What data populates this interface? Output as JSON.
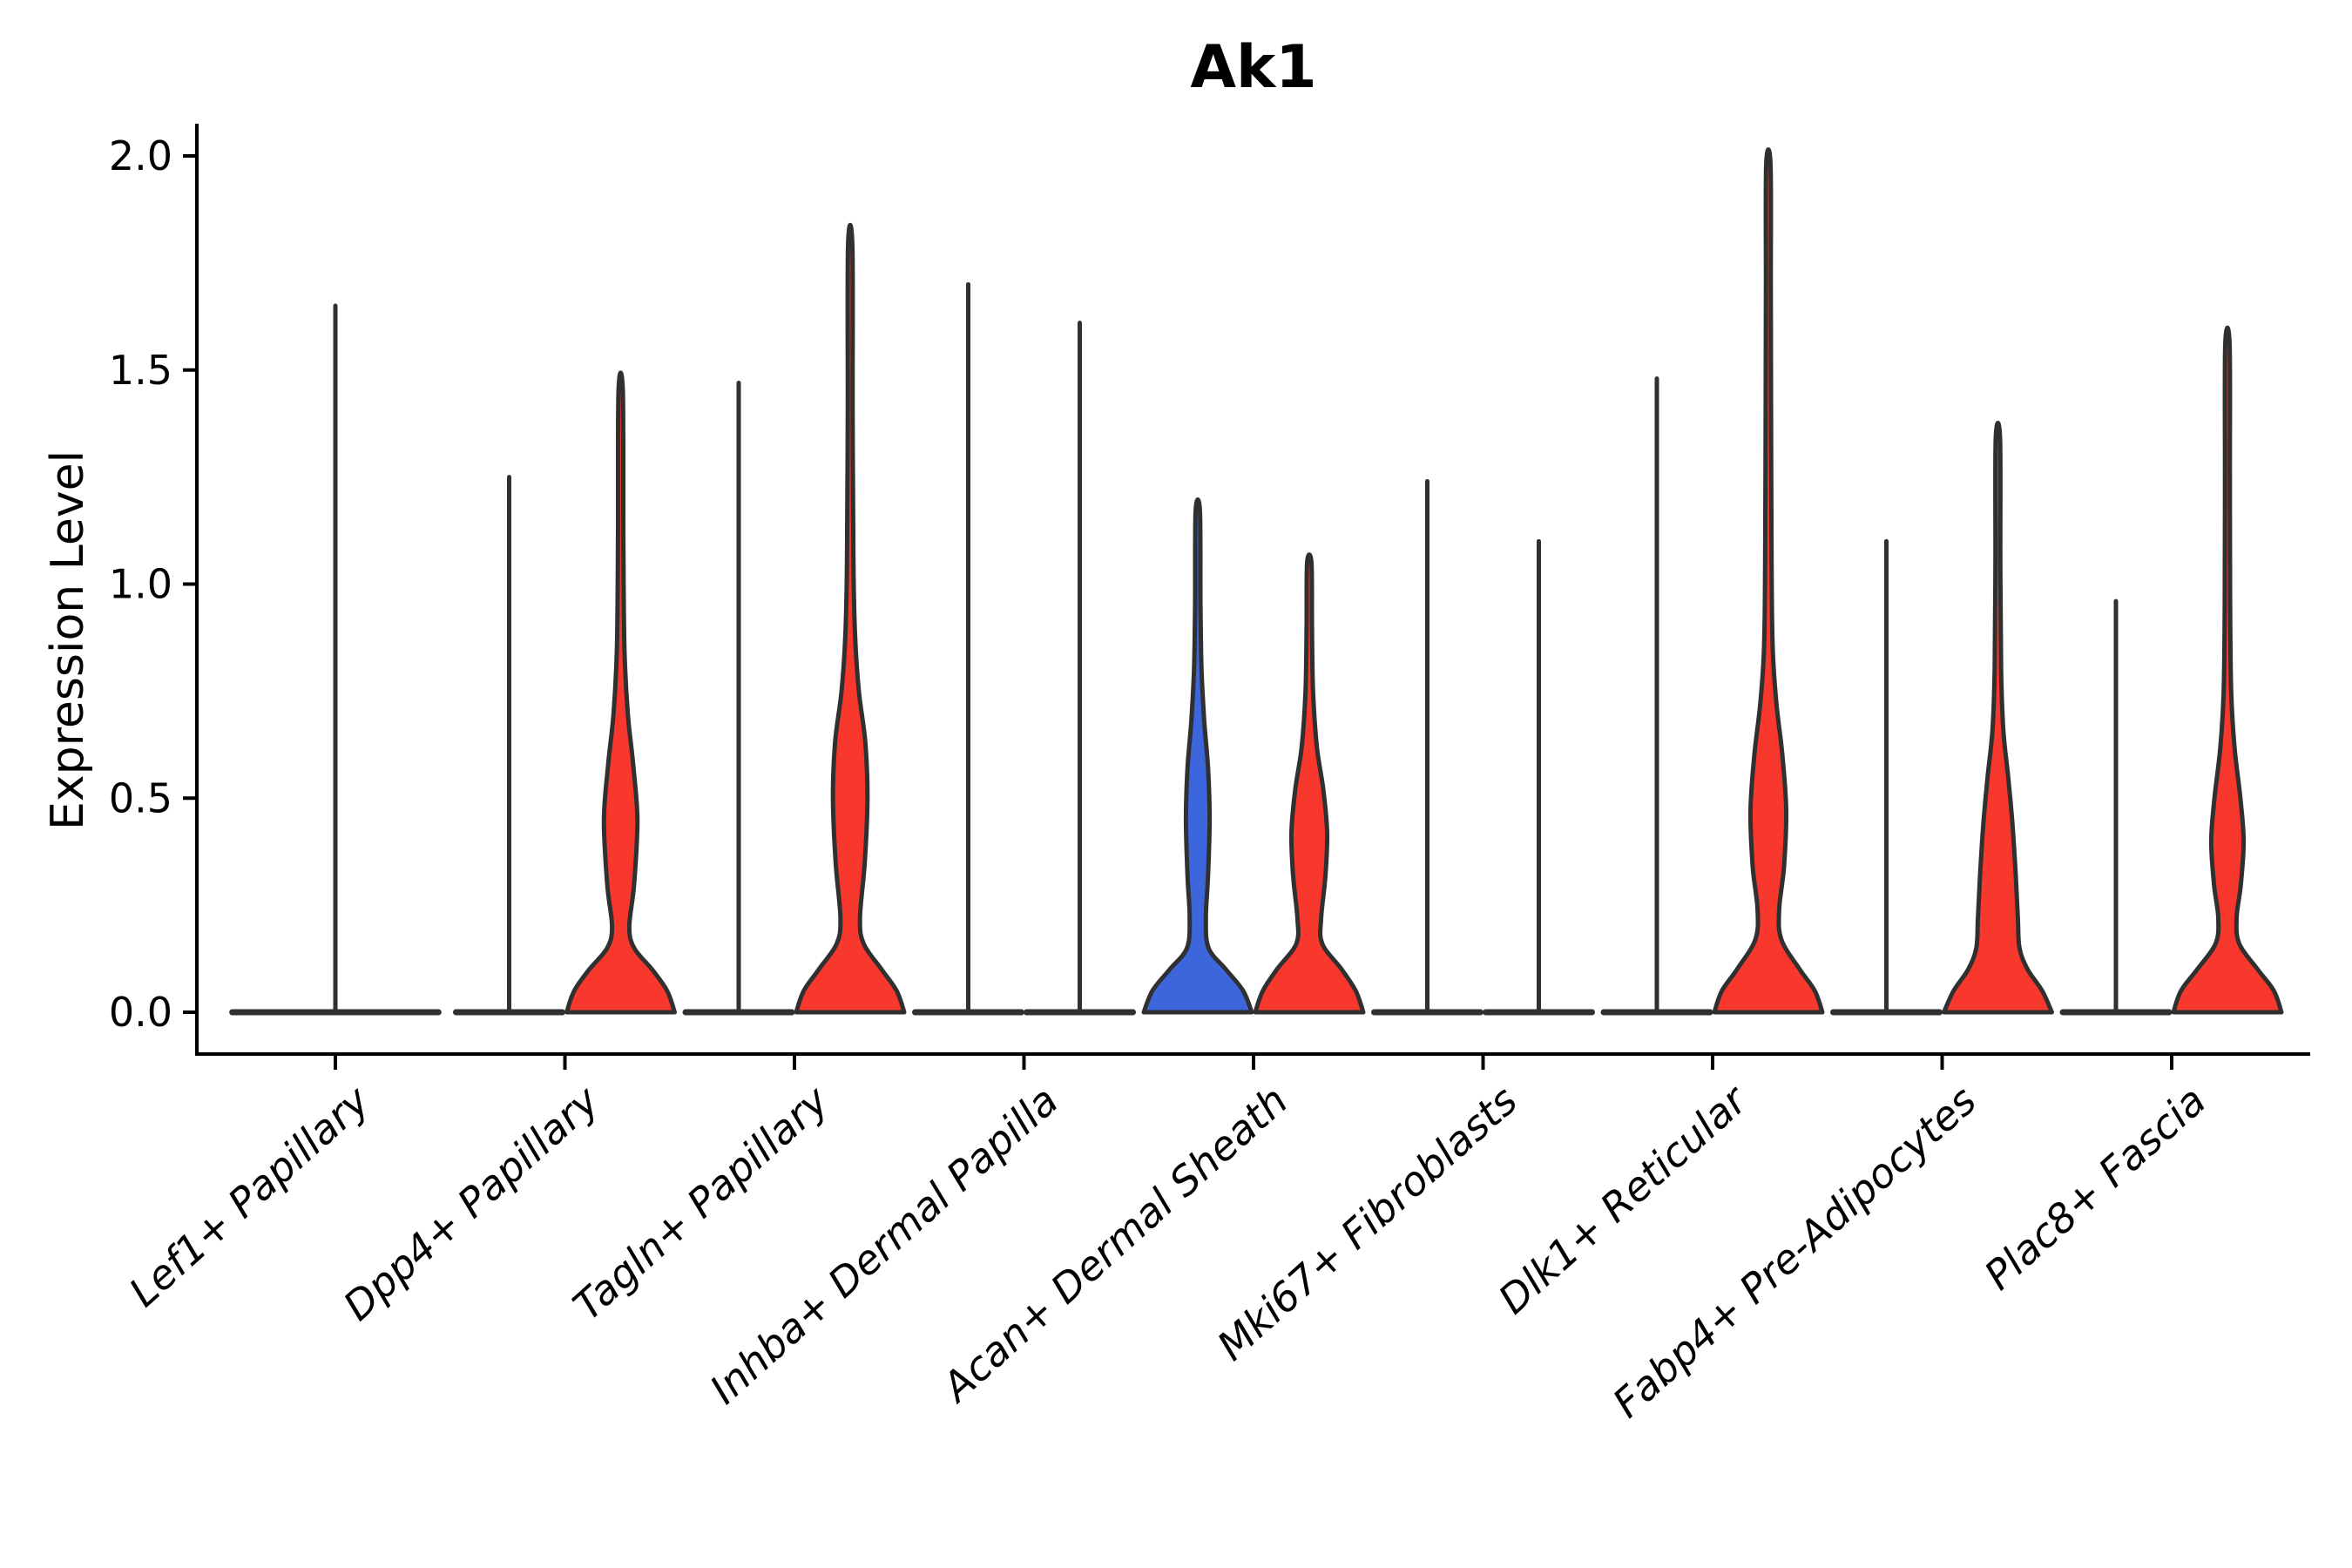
{
  "chart_data": {
    "type": "violin",
    "title": "Ak1",
    "ylabel": "Expression Level",
    "xlabel": "",
    "grid": false,
    "legend": "none",
    "ylim": [
      -0.1,
      2.1
    ],
    "yticks": [
      {
        "value": 0.0,
        "label": "0.0"
      },
      {
        "value": 0.5,
        "label": "0.5"
      },
      {
        "value": 1.0,
        "label": "1.0"
      },
      {
        "value": 1.5,
        "label": "1.5"
      },
      {
        "value": 2.0,
        "label": "2.0"
      }
    ],
    "colors": {
      "red_fill": "#F8372D",
      "blue_fill": "#3D65DC",
      "outline": "#303030",
      "axis": "#000000"
    },
    "categories": [
      "Lef1+ Papillary",
      "Dpp4+ Papillary",
      "Tagln+ Papillary",
      "Inhba+ Dermal Papilla",
      "Acan+ Dermal Sheath",
      "Mki67+ Fibroblasts",
      "Dlk1+ Reticular",
      "Fabp4+ Pre-Adipocytes",
      "Plac8+ Fascia"
    ],
    "groups": [
      {
        "label": "Lef1+ Papillary",
        "violins": [
          {
            "side": "center",
            "style": "spike",
            "fill": "none",
            "max": 1.65,
            "width_scale": 1.94
          }
        ]
      },
      {
        "label": "Dpp4+ Papillary",
        "violins": [
          {
            "side": "left",
            "style": "spike",
            "fill": "none",
            "max": 1.25
          },
          {
            "side": "right",
            "style": "density",
            "fill": "red",
            "max": 1.45,
            "profile": [
              [
                0,
                1.0
              ],
              [
                0.05,
                0.86
              ],
              [
                0.1,
                0.58
              ],
              [
                0.15,
                0.25
              ],
              [
                0.2,
                0.16
              ],
              [
                0.3,
                0.25
              ],
              [
                0.45,
                0.31
              ],
              [
                0.58,
                0.23
              ],
              [
                0.7,
                0.13
              ],
              [
                0.85,
                0.07
              ],
              [
                1.1,
                0.05
              ],
              [
                1.45,
                0.04
              ]
            ]
          }
        ]
      },
      {
        "label": "Tagln+ Papillary",
        "violins": [
          {
            "side": "left",
            "style": "spike",
            "fill": "none",
            "max": 1.47
          },
          {
            "side": "right",
            "style": "density",
            "fill": "red",
            "max": 1.79,
            "profile": [
              [
                0,
                1.0
              ],
              [
                0.05,
                0.86
              ],
              [
                0.1,
                0.58
              ],
              [
                0.16,
                0.25
              ],
              [
                0.22,
                0.18
              ],
              [
                0.35,
                0.27
              ],
              [
                0.5,
                0.32
              ],
              [
                0.63,
                0.28
              ],
              [
                0.75,
                0.16
              ],
              [
                0.88,
                0.09
              ],
              [
                1.05,
                0.06
              ],
              [
                1.4,
                0.045
              ],
              [
                1.79,
                0.04
              ]
            ]
          }
        ]
      },
      {
        "label": "Inhba+ Dermal Papilla",
        "violins": [
          {
            "side": "left",
            "style": "spike",
            "fill": "none",
            "max": 1.7
          },
          {
            "side": "right",
            "style": "spike",
            "fill": "none",
            "max": 1.61
          }
        ]
      },
      {
        "label": "Acan+ Dermal Sheath",
        "violins": [
          {
            "side": "left",
            "style": "density",
            "fill": "blue",
            "max": 1.17,
            "profile": [
              [
                0,
                1.0
              ],
              [
                0.05,
                0.84
              ],
              [
                0.1,
                0.52
              ],
              [
                0.15,
                0.2
              ],
              [
                0.22,
                0.15
              ],
              [
                0.32,
                0.19
              ],
              [
                0.45,
                0.22
              ],
              [
                0.57,
                0.19
              ],
              [
                0.68,
                0.12
              ],
              [
                0.8,
                0.07
              ],
              [
                0.95,
                0.05
              ],
              [
                1.17,
                0.04
              ]
            ]
          },
          {
            "side": "right",
            "style": "density",
            "fill": "red",
            "max": 1.05,
            "profile": [
              [
                0,
                1.0
              ],
              [
                0.05,
                0.86
              ],
              [
                0.1,
                0.6
              ],
              [
                0.16,
                0.24
              ],
              [
                0.22,
                0.22
              ],
              [
                0.32,
                0.3
              ],
              [
                0.42,
                0.33
              ],
              [
                0.52,
                0.26
              ],
              [
                0.62,
                0.14
              ],
              [
                0.75,
                0.07
              ],
              [
                0.9,
                0.05
              ],
              [
                1.05,
                0.04
              ]
            ]
          }
        ]
      },
      {
        "label": "Mki67+ Fibroblasts",
        "violins": [
          {
            "side": "left",
            "style": "spike",
            "fill": "none",
            "max": 1.24
          },
          {
            "side": "right",
            "style": "spike",
            "fill": "none",
            "max": 1.1
          }
        ]
      },
      {
        "label": "Dlk1+ Reticular",
        "violins": [
          {
            "side": "left",
            "style": "spike",
            "fill": "none",
            "max": 1.48
          },
          {
            "side": "right",
            "style": "density",
            "fill": "red",
            "max": 1.98,
            "profile": [
              [
                0,
                1.0
              ],
              [
                0.05,
                0.86
              ],
              [
                0.1,
                0.58
              ],
              [
                0.17,
                0.24
              ],
              [
                0.24,
                0.2
              ],
              [
                0.34,
                0.29
              ],
              [
                0.47,
                0.33
              ],
              [
                0.6,
                0.26
              ],
              [
                0.72,
                0.15
              ],
              [
                0.85,
                0.08
              ],
              [
                1.05,
                0.06
              ],
              [
                1.4,
                0.05
              ],
              [
                1.7,
                0.045
              ],
              [
                1.98,
                0.04
              ]
            ]
          }
        ]
      },
      {
        "label": "Fabp4+ Pre-Adipocytes",
        "violins": [
          {
            "side": "left",
            "style": "spike",
            "fill": "none",
            "max": 1.1
          },
          {
            "side": "right",
            "style": "density",
            "fill": "red",
            "max": 1.34,
            "profile": [
              [
                0,
                1.0
              ],
              [
                0.05,
                0.82
              ],
              [
                0.1,
                0.55
              ],
              [
                0.15,
                0.4
              ],
              [
                0.22,
                0.37
              ],
              [
                0.32,
                0.33
              ],
              [
                0.44,
                0.27
              ],
              [
                0.55,
                0.19
              ],
              [
                0.66,
                0.1
              ],
              [
                0.8,
                0.06
              ],
              [
                1.05,
                0.045
              ],
              [
                1.34,
                0.04
              ]
            ]
          }
        ]
      },
      {
        "label": "Plac8+ Fascia",
        "violins": [
          {
            "side": "left",
            "style": "spike",
            "fill": "none",
            "max": 0.96
          },
          {
            "side": "right",
            "style": "density",
            "fill": "red",
            "max": 1.56,
            "profile": [
              [
                0,
                1.0
              ],
              [
                0.05,
                0.86
              ],
              [
                0.1,
                0.56
              ],
              [
                0.16,
                0.22
              ],
              [
                0.22,
                0.17
              ],
              [
                0.3,
                0.25
              ],
              [
                0.4,
                0.3
              ],
              [
                0.5,
                0.24
              ],
              [
                0.62,
                0.13
              ],
              [
                0.75,
                0.07
              ],
              [
                0.95,
                0.05
              ],
              [
                1.25,
                0.045
              ],
              [
                1.56,
                0.04
              ]
            ]
          }
        ]
      }
    ]
  }
}
